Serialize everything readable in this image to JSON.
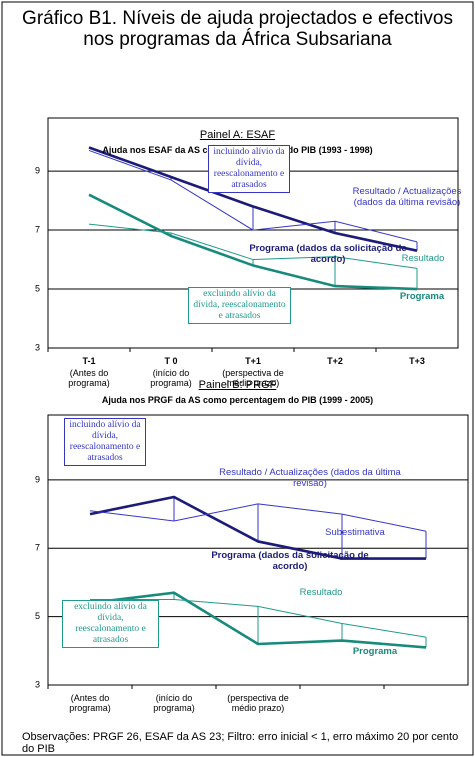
{
  "title": "Gráfico B1. Níveis de ajuda projectados e efectivos nos programas da África Subsariana",
  "note": "Observações: PRGF 26, ESAF da AS 23; Filtro: erro inicial < 1, erro máximo 20 por cento do PIB",
  "chart_data": [
    {
      "type": "line",
      "panel": "Painel A: ESAF",
      "title": "Ajuda nos ESAF da AS como percentagem do PIB (1993 - 1998)",
      "categories": [
        "T-1",
        "T 0",
        "T+1",
        "T+2",
        "T+3"
      ],
      "category_notes": [
        "(Antes do programa)",
        "(início do programa)",
        "(perspectiva de médio prazo)",
        null,
        null
      ],
      "ylim": [
        3,
        10.8
      ],
      "yticks": [
        3,
        5,
        7,
        9
      ],
      "grid": true,
      "series": [
        {
          "name": "Programa (dados da solicitação de acordo)",
          "color": "#1c1c78",
          "values": [
            9.8,
            8.8,
            7.8,
            6.9,
            6.3
          ]
        },
        {
          "name": "Resultado / Actualizações (dados da última revisão)",
          "color": "#3535c8",
          "values": [
            9.7,
            8.7,
            7.0,
            7.3,
            6.6
          ]
        },
        {
          "name": "Programa",
          "color": "#178a7c",
          "values": [
            8.2,
            6.8,
            5.8,
            5.1,
            5.0
          ]
        },
        {
          "name": "Resultado",
          "color": "#1f9a8a",
          "values": [
            7.2,
            6.9,
            6.0,
            6.1,
            5.7
          ]
        }
      ],
      "annotations": [
        "incluindo alívio da dívida, reescalonamento e atrasados",
        "excluindo alívio da dívida, reescalonamento e atrasados"
      ]
    },
    {
      "type": "line",
      "panel": "Painel B: PRGF",
      "title": "Ajuda nos PRGF da AS como percentagem do PIB (1999 - 2005)",
      "categories": [
        "(Antes do programa)",
        "(início do programa)",
        "(perspectiva de médio prazo)",
        null,
        null
      ],
      "ylim": [
        3,
        10.9
      ],
      "yticks": [
        3,
        5,
        7,
        9
      ],
      "grid": true,
      "series": [
        {
          "name": "Programa (dados da solicitação de acordo)",
          "color": "#1c1c78",
          "values": [
            8.0,
            8.5,
            7.2,
            6.7,
            6.7
          ]
        },
        {
          "name": "Resultado / Actualizações (dados da última revisão)",
          "color": "#3535c8",
          "values": [
            8.1,
            7.8,
            8.3,
            8.0,
            7.5
          ]
        },
        {
          "name": "Programa",
          "color": "#178a7c",
          "values": [
            5.4,
            5.7,
            4.2,
            4.3,
            4.1
          ]
        },
        {
          "name": "Resultado",
          "color": "#1f9a8a",
          "values": [
            5.5,
            5.5,
            5.3,
            4.8,
            4.4
          ]
        }
      ],
      "annotations": [
        "incluindo alívio da dívida, reescalonamento e atrasados",
        "excluindo alívio da dívida, reescalonamento e atrasados",
        "Subestimativa"
      ]
    }
  ]
}
